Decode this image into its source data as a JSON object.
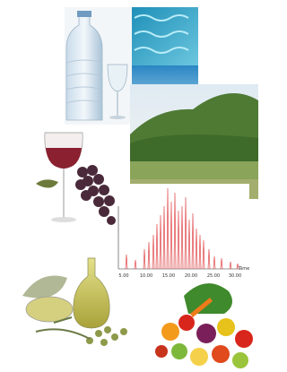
{
  "chromatogram": {
    "x_axis_labels": [
      "5.00",
      "10.00",
      "15.00",
      "20.00",
      "25.00",
      "30.00"
    ],
    "axis_title": "Time"
  }
}
